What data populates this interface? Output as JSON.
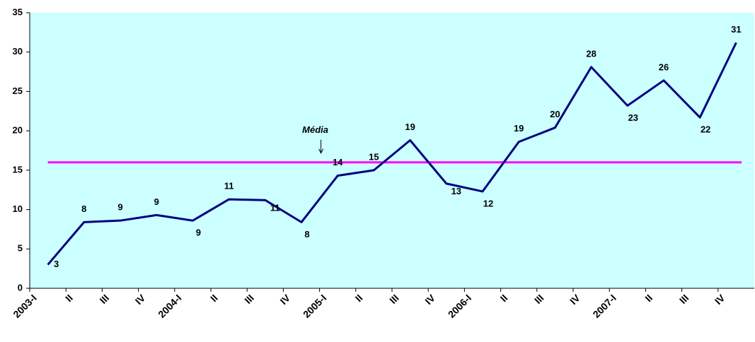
{
  "chart_data": {
    "type": "line",
    "categories": [
      "2003-I",
      "II",
      "III",
      "IV",
      "2004-I",
      "II",
      "III",
      "IV",
      "2005-I",
      "II",
      "III",
      "IV",
      "2006-I",
      "II",
      "III",
      "IV",
      "2007-I",
      "II",
      "III",
      "IV"
    ],
    "series": [
      {
        "color": "#000080",
        "values": [
          3.0,
          8.4,
          8.6,
          9.3,
          8.6,
          11.3,
          11.2,
          8.4,
          14.3,
          15.0,
          18.8,
          13.3,
          12.3,
          18.6,
          20.4,
          28.1,
          23.2,
          26.4,
          21.7,
          31.2
        ],
        "value_labels": [
          "3",
          "8",
          "9",
          "9",
          "9",
          "11",
          "11",
          "8",
          "14",
          "15",
          "19",
          "13",
          "12",
          "19",
          "20",
          "28",
          "23",
          "26",
          "22",
          "31"
        ]
      }
    ],
    "mean": {
      "value": 16,
      "color": "#ff00ff",
      "annotation": "Média"
    },
    "ylim": [
      0,
      35
    ],
    "yticks": [
      0,
      5,
      10,
      15,
      20,
      25,
      30,
      35
    ],
    "background": "#ccffff"
  }
}
